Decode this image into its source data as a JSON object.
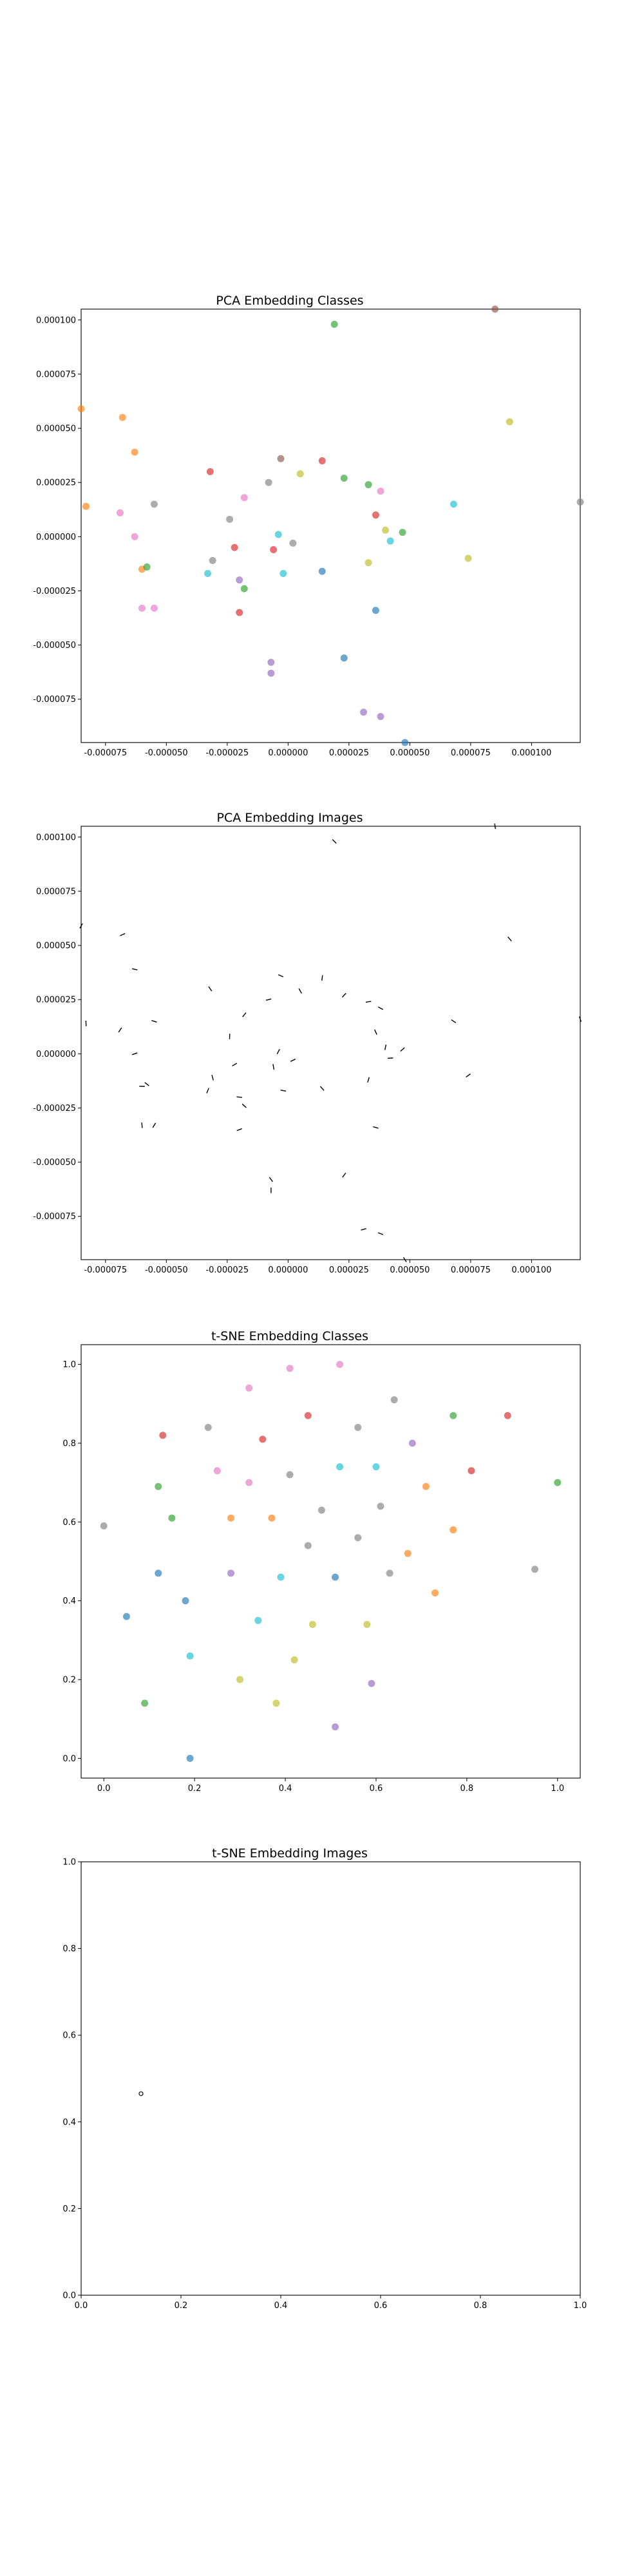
{
  "palette": [
    "#1f77b4",
    "#ff7f0e",
    "#2ca02c",
    "#d62728",
    "#9467bd",
    "#8c564b",
    "#e377c2",
    "#7f7f7f",
    "#bcbd22",
    "#17becf"
  ],
  "chart_data": [
    {
      "type": "scatter",
      "title": "PCA Embedding Classes",
      "xlabel": "",
      "ylabel": "",
      "xlim": [
        -8.5e-05,
        0.00012
      ],
      "ylim": [
        -9.5e-05,
        0.000105
      ],
      "xticks": [
        "-0.000075",
        "-0.000050",
        "-0.000025",
        "0.000000",
        "0.000025",
        "0.000050",
        "0.000075",
        "0.000100"
      ],
      "yticks": [
        "-0.000075",
        "-0.000050",
        "-0.000025",
        "0.000000",
        "0.000025",
        "0.000050",
        "0.000075",
        "0.000100"
      ],
      "grid": false,
      "points": [
        {
          "x": 1.9e-05,
          "y": 9.8e-05,
          "c": 2
        },
        {
          "x": 8.5e-05,
          "y": 0.000105,
          "c": 5
        },
        {
          "x": -8.5e-05,
          "y": 5.9e-05,
          "c": 1
        },
        {
          "x": -6.8e-05,
          "y": 5.5e-05,
          "c": 1
        },
        {
          "x": -6.3e-05,
          "y": 3.9e-05,
          "c": 1
        },
        {
          "x": 9.1e-05,
          "y": 5.3e-05,
          "c": 8
        },
        {
          "x": -8.3e-05,
          "y": 1.4e-05,
          "c": 1
        },
        {
          "x": -6.9e-05,
          "y": 1.1e-05,
          "c": 6
        },
        {
          "x": -6.3e-05,
          "y": 0.0,
          "c": 6
        },
        {
          "x": -5.5e-05,
          "y": 1.5e-05,
          "c": 7
        },
        {
          "x": -3.2e-05,
          "y": 3e-05,
          "c": 3
        },
        {
          "x": -2.4e-05,
          "y": 8e-06,
          "c": 7
        },
        {
          "x": -1.8e-05,
          "y": 1.8e-05,
          "c": 6
        },
        {
          "x": -8e-06,
          "y": 2.5e-05,
          "c": 7
        },
        {
          "x": -3e-06,
          "y": 3.6e-05,
          "c": 5
        },
        {
          "x": 5e-06,
          "y": 2.9e-05,
          "c": 8
        },
        {
          "x": 1.4e-05,
          "y": 3.5e-05,
          "c": 3
        },
        {
          "x": 2.3e-05,
          "y": 2.7e-05,
          "c": 2
        },
        {
          "x": 3.3e-05,
          "y": 2.4e-05,
          "c": 2
        },
        {
          "x": 3.8e-05,
          "y": 2.1e-05,
          "c": 6
        },
        {
          "x": 3.6e-05,
          "y": 1e-05,
          "c": 3
        },
        {
          "x": 4e-05,
          "y": 3e-06,
          "c": 8
        },
        {
          "x": 4.7e-05,
          "y": 2e-06,
          "c": 2
        },
        {
          "x": 4.2e-05,
          "y": -2e-06,
          "c": 9
        },
        {
          "x": 6.8e-05,
          "y": 1.5e-05,
          "c": 9
        },
        {
          "x": 0.00012,
          "y": 1.6e-05,
          "c": 7
        },
        {
          "x": 3.3e-05,
          "y": -1.2e-05,
          "c": 8
        },
        {
          "x": 7.4e-05,
          "y": -1e-05,
          "c": 8
        },
        {
          "x": -6e-05,
          "y": -1.5e-05,
          "c": 1
        },
        {
          "x": -5.8e-05,
          "y": -1.4e-05,
          "c": 2
        },
        {
          "x": -3.1e-05,
          "y": -1.1e-05,
          "c": 7
        },
        {
          "x": -3.3e-05,
          "y": -1.7e-05,
          "c": 9
        },
        {
          "x": -2.2e-05,
          "y": -5e-06,
          "c": 3
        },
        {
          "x": -2e-05,
          "y": -2e-05,
          "c": 4
        },
        {
          "x": -1.8e-05,
          "y": -2.4e-05,
          "c": 2
        },
        {
          "x": -6e-06,
          "y": -6e-06,
          "c": 3
        },
        {
          "x": -4e-06,
          "y": 1e-06,
          "c": 9
        },
        {
          "x": 2e-06,
          "y": -3e-06,
          "c": 7
        },
        {
          "x": -2e-06,
          "y": -1.7e-05,
          "c": 9
        },
        {
          "x": 1.4e-05,
          "y": -1.6e-05,
          "c": 0
        },
        {
          "x": -6e-05,
          "y": -3.3e-05,
          "c": 6
        },
        {
          "x": -5.5e-05,
          "y": -3.3e-05,
          "c": 6
        },
        {
          "x": -2e-05,
          "y": -3.5e-05,
          "c": 3
        },
        {
          "x": 3.6e-05,
          "y": -3.4e-05,
          "c": 0
        },
        {
          "x": -7e-06,
          "y": -5.8e-05,
          "c": 4
        },
        {
          "x": -7e-06,
          "y": -6.3e-05,
          "c": 4
        },
        {
          "x": 2.3e-05,
          "y": -5.6e-05,
          "c": 0
        },
        {
          "x": 3.1e-05,
          "y": -8.1e-05,
          "c": 4
        },
        {
          "x": 3.8e-05,
          "y": -8.3e-05,
          "c": 4
        },
        {
          "x": 4.8e-05,
          "y": -9.5e-05,
          "c": 0
        }
      ]
    },
    {
      "type": "scatter",
      "title": "PCA Embedding Images",
      "xlabel": "",
      "ylabel": "",
      "xlim": [
        -8.5e-05,
        0.00012
      ],
      "ylim": [
        -9.5e-05,
        0.000105
      ],
      "xticks": [
        "-0.000075",
        "-0.000050",
        "-0.000025",
        "0.000000",
        "0.000025",
        "0.000050",
        "0.000075",
        "0.000100"
      ],
      "yticks": [
        "-0.000075",
        "-0.000050",
        "-0.000025",
        "0.000000",
        "0.000025",
        "0.000050",
        "0.000075",
        "0.000100"
      ],
      "grid": false
    },
    {
      "type": "scatter",
      "title": "t-SNE Embedding Classes",
      "xlabel": "",
      "ylabel": "",
      "xlim": [
        -0.05,
        1.05
      ],
      "ylim": [
        -0.05,
        1.05
      ],
      "xticks": [
        "0.0",
        "0.2",
        "0.4",
        "0.6",
        "0.8",
        "1.0"
      ],
      "yticks": [
        "0.0",
        "0.2",
        "0.4",
        "0.6",
        "0.8",
        "1.0"
      ],
      "grid": false,
      "points": [
        {
          "x": 0.41,
          "y": 0.99,
          "c": 6
        },
        {
          "x": 0.52,
          "y": 1.0,
          "c": 6
        },
        {
          "x": 0.32,
          "y": 0.94,
          "c": 6
        },
        {
          "x": 0.64,
          "y": 0.91,
          "c": 7
        },
        {
          "x": 0.45,
          "y": 0.87,
          "c": 3
        },
        {
          "x": 0.77,
          "y": 0.87,
          "c": 2
        },
        {
          "x": 0.89,
          "y": 0.87,
          "c": 3
        },
        {
          "x": 0.23,
          "y": 0.84,
          "c": 7
        },
        {
          "x": 0.56,
          "y": 0.84,
          "c": 7
        },
        {
          "x": 0.13,
          "y": 0.82,
          "c": 3
        },
        {
          "x": 0.35,
          "y": 0.81,
          "c": 3
        },
        {
          "x": 0.68,
          "y": 0.8,
          "c": 4
        },
        {
          "x": 0.52,
          "y": 0.74,
          "c": 9
        },
        {
          "x": 0.6,
          "y": 0.74,
          "c": 9
        },
        {
          "x": 0.25,
          "y": 0.73,
          "c": 6
        },
        {
          "x": 0.41,
          "y": 0.72,
          "c": 7
        },
        {
          "x": 0.81,
          "y": 0.73,
          "c": 3
        },
        {
          "x": 0.12,
          "y": 0.69,
          "c": 2
        },
        {
          "x": 0.32,
          "y": 0.7,
          "c": 6
        },
        {
          "x": 0.71,
          "y": 0.69,
          "c": 1
        },
        {
          "x": 1.0,
          "y": 0.7,
          "c": 2
        },
        {
          "x": 0.61,
          "y": 0.64,
          "c": 7
        },
        {
          "x": 0.48,
          "y": 0.63,
          "c": 7
        },
        {
          "x": 0.15,
          "y": 0.61,
          "c": 2
        },
        {
          "x": 0.28,
          "y": 0.61,
          "c": 1
        },
        {
          "x": 0.37,
          "y": 0.61,
          "c": 1
        },
        {
          "x": 0.0,
          "y": 0.59,
          "c": 7
        },
        {
          "x": 0.56,
          "y": 0.56,
          "c": 7
        },
        {
          "x": 0.77,
          "y": 0.58,
          "c": 1
        },
        {
          "x": 0.45,
          "y": 0.54,
          "c": 7
        },
        {
          "x": 0.67,
          "y": 0.52,
          "c": 1
        },
        {
          "x": 0.28,
          "y": 0.47,
          "c": 4
        },
        {
          "x": 0.12,
          "y": 0.47,
          "c": 0
        },
        {
          "x": 0.39,
          "y": 0.46,
          "c": 9
        },
        {
          "x": 0.51,
          "y": 0.46,
          "c": 0
        },
        {
          "x": 0.63,
          "y": 0.47,
          "c": 7
        },
        {
          "x": 0.95,
          "y": 0.48,
          "c": 7
        },
        {
          "x": 0.73,
          "y": 0.42,
          "c": 1
        },
        {
          "x": 0.05,
          "y": 0.36,
          "c": 0
        },
        {
          "x": 0.34,
          "y": 0.35,
          "c": 9
        },
        {
          "x": 0.46,
          "y": 0.34,
          "c": 8
        },
        {
          "x": 0.58,
          "y": 0.34,
          "c": 8
        },
        {
          "x": 0.18,
          "y": 0.4,
          "c": 0
        },
        {
          "x": 0.19,
          "y": 0.26,
          "c": 9
        },
        {
          "x": 0.42,
          "y": 0.25,
          "c": 8
        },
        {
          "x": 0.3,
          "y": 0.2,
          "c": 8
        },
        {
          "x": 0.59,
          "y": 0.19,
          "c": 4
        },
        {
          "x": 0.09,
          "y": 0.14,
          "c": 2
        },
        {
          "x": 0.38,
          "y": 0.14,
          "c": 8
        },
        {
          "x": 0.51,
          "y": 0.08,
          "c": 4
        },
        {
          "x": 0.19,
          "y": 0.0,
          "c": 0
        }
      ]
    },
    {
      "type": "scatter",
      "title": "t-SNE Embedding Images",
      "xlabel": "",
      "ylabel": "",
      "xlim": [
        0.0,
        1.0
      ],
      "ylim": [
        0.0,
        1.0
      ],
      "xticks": [
        "0.0",
        "0.2",
        "0.4",
        "0.6",
        "0.8",
        "1.0"
      ],
      "yticks": [
        "0.0",
        "0.2",
        "0.4",
        "0.6",
        "0.8",
        "1.0"
      ],
      "grid": false
    }
  ]
}
